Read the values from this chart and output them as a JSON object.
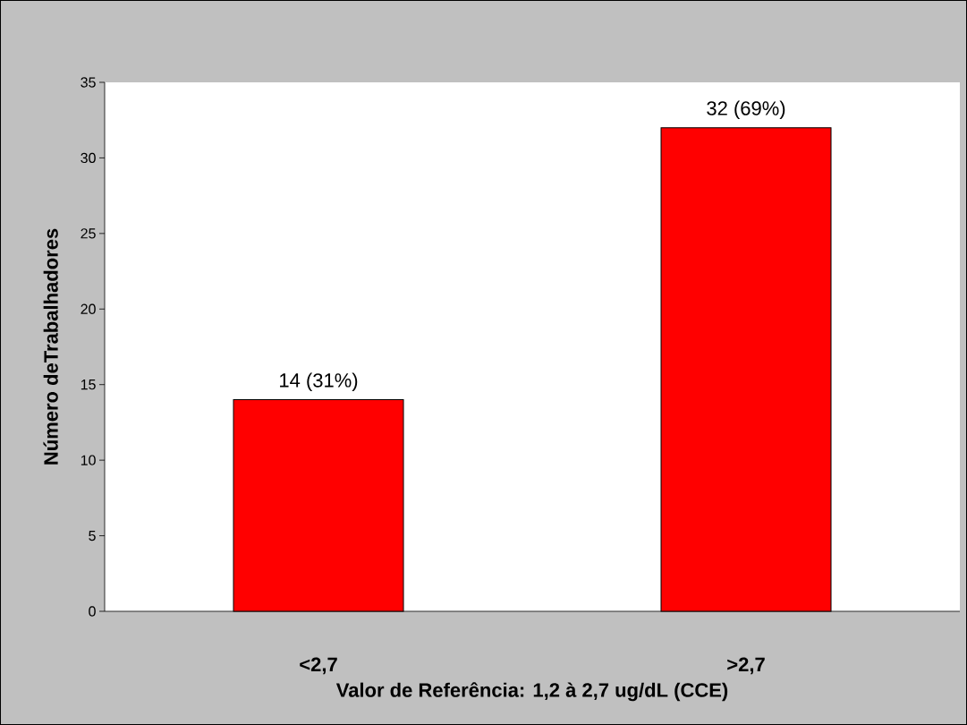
{
  "chart_data": {
    "type": "bar",
    "xlabel": "Valor de Referência: 1,2 à 2,7 ug/dL (CCE)",
    "ylabel": "Número deTrabalhadores",
    "categories": [
      "<2,7",
      ">2,7"
    ],
    "values": [
      14,
      32
    ],
    "value_labels": [
      "14 (31%)",
      "32 (69%)"
    ],
    "color": "#ff0000",
    "ylim": [
      0,
      35
    ],
    "yticks": [
      0,
      5,
      10,
      15,
      20,
      25,
      30,
      35
    ]
  }
}
